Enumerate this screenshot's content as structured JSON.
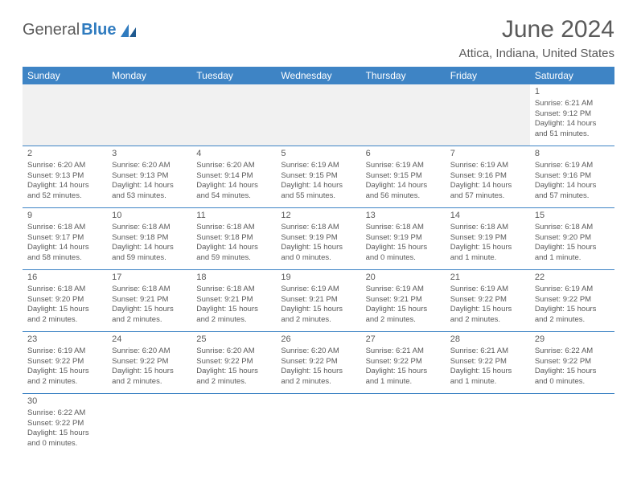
{
  "brand": {
    "text1": "General",
    "text2": "Blue"
  },
  "title": "June 2024",
  "subtitle": "Attica, Indiana, United States",
  "colors": {
    "header_bg": "#3e84c5",
    "header_text": "#ffffff",
    "text": "#5a5a5a",
    "blank_bg": "#f1f1f1",
    "border": "#3e84c5"
  },
  "weekdays": [
    "Sunday",
    "Monday",
    "Tuesday",
    "Wednesday",
    "Thursday",
    "Friday",
    "Saturday"
  ],
  "days": {
    "1": {
      "sunrise": "6:21 AM",
      "sunset": "9:12 PM",
      "daylight": "14 hours and 51 minutes."
    },
    "2": {
      "sunrise": "6:20 AM",
      "sunset": "9:13 PM",
      "daylight": "14 hours and 52 minutes."
    },
    "3": {
      "sunrise": "6:20 AM",
      "sunset": "9:13 PM",
      "daylight": "14 hours and 53 minutes."
    },
    "4": {
      "sunrise": "6:20 AM",
      "sunset": "9:14 PM",
      "daylight": "14 hours and 54 minutes."
    },
    "5": {
      "sunrise": "6:19 AM",
      "sunset": "9:15 PM",
      "daylight": "14 hours and 55 minutes."
    },
    "6": {
      "sunrise": "6:19 AM",
      "sunset": "9:15 PM",
      "daylight": "14 hours and 56 minutes."
    },
    "7": {
      "sunrise": "6:19 AM",
      "sunset": "9:16 PM",
      "daylight": "14 hours and 57 minutes."
    },
    "8": {
      "sunrise": "6:19 AM",
      "sunset": "9:16 PM",
      "daylight": "14 hours and 57 minutes."
    },
    "9": {
      "sunrise": "6:18 AM",
      "sunset": "9:17 PM",
      "daylight": "14 hours and 58 minutes."
    },
    "10": {
      "sunrise": "6:18 AM",
      "sunset": "9:18 PM",
      "daylight": "14 hours and 59 minutes."
    },
    "11": {
      "sunrise": "6:18 AM",
      "sunset": "9:18 PM",
      "daylight": "14 hours and 59 minutes."
    },
    "12": {
      "sunrise": "6:18 AM",
      "sunset": "9:19 PM",
      "daylight": "15 hours and 0 minutes."
    },
    "13": {
      "sunrise": "6:18 AM",
      "sunset": "9:19 PM",
      "daylight": "15 hours and 0 minutes."
    },
    "14": {
      "sunrise": "6:18 AM",
      "sunset": "9:19 PM",
      "daylight": "15 hours and 1 minute."
    },
    "15": {
      "sunrise": "6:18 AM",
      "sunset": "9:20 PM",
      "daylight": "15 hours and 1 minute."
    },
    "16": {
      "sunrise": "6:18 AM",
      "sunset": "9:20 PM",
      "daylight": "15 hours and 2 minutes."
    },
    "17": {
      "sunrise": "6:18 AM",
      "sunset": "9:21 PM",
      "daylight": "15 hours and 2 minutes."
    },
    "18": {
      "sunrise": "6:18 AM",
      "sunset": "9:21 PM",
      "daylight": "15 hours and 2 minutes."
    },
    "19": {
      "sunrise": "6:19 AM",
      "sunset": "9:21 PM",
      "daylight": "15 hours and 2 minutes."
    },
    "20": {
      "sunrise": "6:19 AM",
      "sunset": "9:21 PM",
      "daylight": "15 hours and 2 minutes."
    },
    "21": {
      "sunrise": "6:19 AM",
      "sunset": "9:22 PM",
      "daylight": "15 hours and 2 minutes."
    },
    "22": {
      "sunrise": "6:19 AM",
      "sunset": "9:22 PM",
      "daylight": "15 hours and 2 minutes."
    },
    "23": {
      "sunrise": "6:19 AM",
      "sunset": "9:22 PM",
      "daylight": "15 hours and 2 minutes."
    },
    "24": {
      "sunrise": "6:20 AM",
      "sunset": "9:22 PM",
      "daylight": "15 hours and 2 minutes."
    },
    "25": {
      "sunrise": "6:20 AM",
      "sunset": "9:22 PM",
      "daylight": "15 hours and 2 minutes."
    },
    "26": {
      "sunrise": "6:20 AM",
      "sunset": "9:22 PM",
      "daylight": "15 hours and 2 minutes."
    },
    "27": {
      "sunrise": "6:21 AM",
      "sunset": "9:22 PM",
      "daylight": "15 hours and 1 minute."
    },
    "28": {
      "sunrise": "6:21 AM",
      "sunset": "9:22 PM",
      "daylight": "15 hours and 1 minute."
    },
    "29": {
      "sunrise": "6:22 AM",
      "sunset": "9:22 PM",
      "daylight": "15 hours and 0 minutes."
    },
    "30": {
      "sunrise": "6:22 AM",
      "sunset": "9:22 PM",
      "daylight": "15 hours and 0 minutes."
    }
  },
  "labels": {
    "sunrise": "Sunrise: ",
    "sunset": "Sunset: ",
    "daylight": "Daylight: "
  },
  "grid": [
    [
      null,
      null,
      null,
      null,
      null,
      null,
      "1"
    ],
    [
      "2",
      "3",
      "4",
      "5",
      "6",
      "7",
      "8"
    ],
    [
      "9",
      "10",
      "11",
      "12",
      "13",
      "14",
      "15"
    ],
    [
      "16",
      "17",
      "18",
      "19",
      "20",
      "21",
      "22"
    ],
    [
      "23",
      "24",
      "25",
      "26",
      "27",
      "28",
      "29"
    ],
    [
      "30",
      null,
      null,
      null,
      null,
      null,
      null
    ]
  ]
}
